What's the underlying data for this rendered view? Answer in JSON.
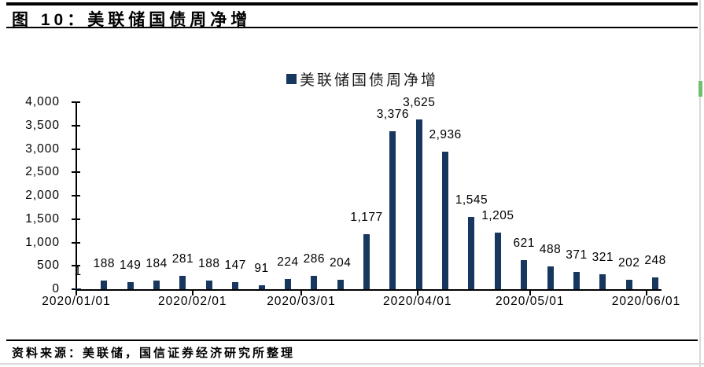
{
  "figure": {
    "title": "图 10：美联储国债周净增",
    "source_prefix": "资料来源：",
    "source_text": "美联储，国信证券经济研究所整理"
  },
  "colors": {
    "bar": "#17375E",
    "axis": "#000000",
    "page_edge": "#d9d9d9",
    "scroll_mark_green": "#70c070"
  },
  "chart_data": {
    "type": "bar",
    "title": "美联储国债周净增",
    "legend": [
      "美联储国债周净增"
    ],
    "legend_label": "美联储国债周净增",
    "legend_position": "top-center",
    "grid": false,
    "frequency": "weekly",
    "x_tick_labels": [
      "2020/01/01",
      "2020/02/01",
      "2020/03/01",
      "2020/04/01",
      "2020/05/01",
      "2020/06/01"
    ],
    "month_day_offsets": [
      0,
      31,
      60,
      91,
      121,
      152
    ],
    "y_tick_labels": [
      "4,000",
      "3,500",
      "3,000",
      "2,500",
      "2,000",
      "1,500",
      "1,000",
      "500",
      "0"
    ],
    "ylim": [
      0,
      4000
    ],
    "y_step": 500,
    "values": [
      1,
      188,
      149,
      184,
      281,
      188,
      147,
      91,
      224,
      286,
      204,
      1177,
      3376,
      3625,
      2936,
      1545,
      1205,
      621,
      488,
      371,
      321,
      202,
      248
    ],
    "value_labels": [
      "1",
      "188",
      "149",
      "184",
      "281",
      "188",
      "147",
      "91",
      "224",
      "286",
      "204",
      "1,177",
      "3,376",
      "3,625",
      "2,936",
      "1,545",
      "1,205",
      "621",
      "488",
      "371",
      "321",
      "202",
      "248"
    ]
  }
}
